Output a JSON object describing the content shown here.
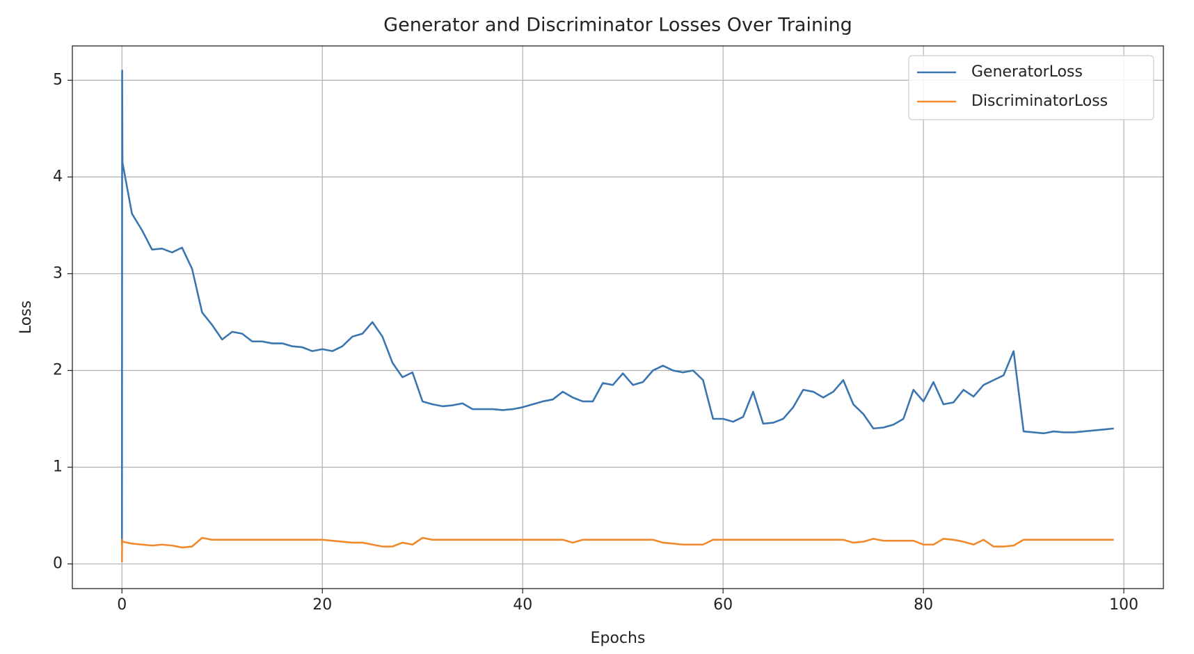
{
  "chart_data": {
    "type": "line",
    "title": "Generator and Discriminator Losses Over Training",
    "xlabel": "Epochs",
    "ylabel": "Loss",
    "x": [
      0,
      0.02,
      0.05,
      1,
      2,
      3,
      4,
      5,
      6,
      7,
      8,
      9,
      10,
      11,
      12,
      13,
      14,
      15,
      16,
      17,
      18,
      19,
      20,
      21,
      22,
      23,
      24,
      25,
      26,
      27,
      28,
      29,
      30,
      31,
      32,
      33,
      34,
      35,
      36,
      37,
      38,
      39,
      40,
      41,
      42,
      43,
      44,
      45,
      46,
      47,
      48,
      49,
      50,
      51,
      52,
      53,
      54,
      55,
      56,
      57,
      58,
      59,
      60,
      61,
      62,
      63,
      64,
      65,
      66,
      67,
      68,
      69,
      70,
      71,
      72,
      73,
      74,
      75,
      76,
      77,
      78,
      79,
      80,
      81,
      82,
      83,
      84,
      85,
      86,
      87,
      88,
      89,
      90,
      91,
      92,
      93,
      94,
      95,
      96,
      97,
      98,
      99
    ],
    "series": [
      {
        "name": "GeneratorLoss",
        "color": "#3a75b0",
        "values": [
          0.2,
          5.1,
          4.15,
          3.62,
          3.45,
          3.25,
          3.26,
          3.22,
          3.27,
          3.05,
          2.6,
          2.47,
          2.32,
          2.4,
          2.38,
          2.3,
          2.3,
          2.28,
          2.28,
          2.25,
          2.24,
          2.2,
          2.22,
          2.2,
          2.25,
          2.35,
          2.38,
          2.5,
          2.35,
          2.08,
          1.93,
          1.98,
          1.68,
          1.65,
          1.63,
          1.64,
          1.66,
          1.6,
          1.6,
          1.6,
          1.59,
          1.6,
          1.62,
          1.65,
          1.68,
          1.7,
          1.78,
          1.72,
          1.68,
          1.68,
          1.87,
          1.85,
          1.97,
          1.85,
          1.88,
          2.0,
          2.05,
          2.0,
          1.98,
          2.0,
          1.9,
          1.5,
          1.5,
          1.47,
          1.52,
          1.78,
          1.45,
          1.46,
          1.5,
          1.62,
          1.8,
          1.78,
          1.72,
          1.78,
          1.9,
          1.65,
          1.55,
          1.4,
          1.41,
          1.44,
          1.5,
          1.8,
          1.68,
          1.88,
          1.65,
          1.67,
          1.8,
          1.73,
          1.85,
          1.9,
          1.95,
          2.2,
          1.37,
          1.36,
          1.35,
          1.37,
          1.36,
          1.36,
          1.37,
          1.38,
          1.39,
          1.4
        ]
      },
      {
        "name": "DiscriminatorLoss",
        "color": "#f08a2c",
        "values": [
          0.02,
          0.25,
          0.23,
          0.21,
          0.2,
          0.19,
          0.2,
          0.19,
          0.17,
          0.18,
          0.27,
          0.25,
          0.25,
          0.25,
          0.25,
          0.25,
          0.25,
          0.25,
          0.25,
          0.25,
          0.25,
          0.25,
          0.25,
          0.24,
          0.23,
          0.22,
          0.22,
          0.2,
          0.18,
          0.18,
          0.22,
          0.2,
          0.27,
          0.25,
          0.25,
          0.25,
          0.25,
          0.25,
          0.25,
          0.25,
          0.25,
          0.25,
          0.25,
          0.25,
          0.25,
          0.25,
          0.25,
          0.22,
          0.25,
          0.25,
          0.25,
          0.25,
          0.25,
          0.25,
          0.25,
          0.25,
          0.22,
          0.21,
          0.2,
          0.2,
          0.2,
          0.25,
          0.25,
          0.25,
          0.25,
          0.25,
          0.25,
          0.25,
          0.25,
          0.25,
          0.25,
          0.25,
          0.25,
          0.25,
          0.25,
          0.22,
          0.23,
          0.26,
          0.24,
          0.24,
          0.24,
          0.24,
          0.2,
          0.2,
          0.26,
          0.25,
          0.23,
          0.2,
          0.25,
          0.18,
          0.18,
          0.19,
          0.25,
          0.25,
          0.25,
          0.25,
          0.25,
          0.25,
          0.25,
          0.25,
          0.25,
          0.25
        ]
      }
    ],
    "xlim": [
      -4.95,
      103.95
    ],
    "xticks": [
      0,
      20,
      40,
      60,
      80,
      100
    ],
    "ylim": [
      -0.255,
      5.355
    ],
    "yticks": [
      0,
      1,
      2,
      3,
      4,
      5
    ],
    "grid": true,
    "legend": "upper right"
  }
}
